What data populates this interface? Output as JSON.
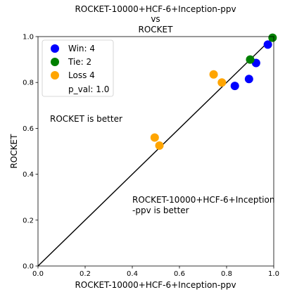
{
  "chart_data": {
    "type": "scatter",
    "title": [
      "ROCKET-10000+HCF-6+Inception-ppv",
      "vs",
      "ROCKET"
    ],
    "xlabel": "ROCKET-10000+HCF-6+Inception-ppv",
    "ylabel": "ROCKET",
    "xlim": [
      0,
      1
    ],
    "ylim": [
      0,
      1
    ],
    "xticks": [
      "0.0",
      "0.2",
      "0.4",
      "0.6",
      "0.8",
      "1.0"
    ],
    "yticks": [
      "0.0",
      "0.2",
      "0.4",
      "0.6",
      "0.8",
      "1.0"
    ],
    "grid": false,
    "legend_position": "top-left",
    "diagonal": true,
    "annotations": {
      "upper": [
        "ROCKET is better"
      ],
      "lower": [
        "ROCKET-10000+HCF-6+Inception",
        "-ppv is better"
      ]
    },
    "legend": {
      "entries": [
        "Win: 4",
        "Tie: 2",
        "Loss 4"
      ],
      "pval": "p_val: 1.0"
    },
    "series": [
      {
        "color": "#0000ff",
        "points": [
          [
            0.975,
            0.965
          ],
          [
            0.925,
            0.885
          ],
          [
            0.895,
            0.815
          ],
          [
            0.835,
            0.785
          ]
        ]
      },
      {
        "color": "#008000",
        "points": [
          [
            0.995,
            0.995
          ],
          [
            0.9,
            0.9
          ]
        ]
      },
      {
        "color": "#ffa500",
        "points": [
          [
            0.745,
            0.835
          ],
          [
            0.78,
            0.8
          ],
          [
            0.495,
            0.56
          ],
          [
            0.515,
            0.525
          ]
        ]
      }
    ]
  }
}
